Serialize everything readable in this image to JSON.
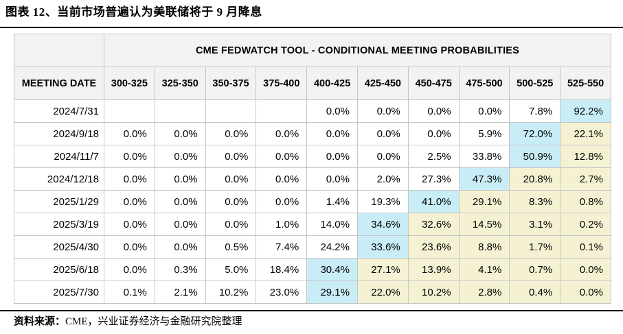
{
  "page": {
    "title": "图表 12、当前市场普遍认为美联储将于 9 月降息",
    "source": {
      "label": "资料来源：",
      "text": "CME，兴业证券经济与金融研究院整理"
    }
  },
  "table": {
    "main_header": "CME FEDWATCH TOOL - CONDITIONAL MEETING PROBABILITIES",
    "meeting_date_header": "MEETING DATE",
    "rate_bins": [
      "300-325",
      "325-350",
      "350-375",
      "375-400",
      "400-425",
      "425-450",
      "450-475",
      "475-500",
      "500-525",
      "525-550"
    ],
    "rows": [
      {
        "date": "2024/7/31",
        "values": [
          "",
          "",
          "",
          "",
          "0.0%",
          "0.0%",
          "0.0%",
          "0.0%",
          "7.8%",
          "92.2%"
        ],
        "highlights": [
          "",
          "",
          "",
          "",
          "",
          "",
          "",
          "",
          "",
          "cyan"
        ]
      },
      {
        "date": "2024/9/18",
        "values": [
          "0.0%",
          "0.0%",
          "0.0%",
          "0.0%",
          "0.0%",
          "0.0%",
          "0.0%",
          "5.9%",
          "72.0%",
          "22.1%"
        ],
        "highlights": [
          "",
          "",
          "",
          "",
          "",
          "",
          "",
          "",
          "cyan",
          "yellow"
        ]
      },
      {
        "date": "2024/11/7",
        "values": [
          "0.0%",
          "0.0%",
          "0.0%",
          "0.0%",
          "0.0%",
          "0.0%",
          "2.5%",
          "33.8%",
          "50.9%",
          "12.8%"
        ],
        "highlights": [
          "",
          "",
          "",
          "",
          "",
          "",
          "",
          "",
          "cyan",
          "yellow"
        ]
      },
      {
        "date": "2024/12/18",
        "values": [
          "0.0%",
          "0.0%",
          "0.0%",
          "0.0%",
          "0.0%",
          "2.0%",
          "27.3%",
          "47.3%",
          "20.8%",
          "2.7%"
        ],
        "highlights": [
          "",
          "",
          "",
          "",
          "",
          "",
          "",
          "cyan",
          "yellow",
          "yellow"
        ]
      },
      {
        "date": "2025/1/29",
        "values": [
          "0.0%",
          "0.0%",
          "0.0%",
          "0.0%",
          "1.4%",
          "19.3%",
          "41.0%",
          "29.1%",
          "8.3%",
          "0.8%"
        ],
        "highlights": [
          "",
          "",
          "",
          "",
          "",
          "",
          "cyan",
          "yellow",
          "yellow",
          "yellow"
        ]
      },
      {
        "date": "2025/3/19",
        "values": [
          "0.0%",
          "0.0%",
          "0.0%",
          "1.0%",
          "14.0%",
          "34.6%",
          "32.6%",
          "14.5%",
          "3.1%",
          "0.2%"
        ],
        "highlights": [
          "",
          "",
          "",
          "",
          "",
          "cyan",
          "yellow",
          "yellow",
          "yellow",
          "yellow"
        ]
      },
      {
        "date": "2025/4/30",
        "values": [
          "0.0%",
          "0.0%",
          "0.5%",
          "7.4%",
          "24.2%",
          "33.6%",
          "23.6%",
          "8.8%",
          "1.7%",
          "0.1%"
        ],
        "highlights": [
          "",
          "",
          "",
          "",
          "",
          "cyan",
          "yellow",
          "yellow",
          "yellow",
          "yellow"
        ]
      },
      {
        "date": "2025/6/18",
        "values": [
          "0.0%",
          "0.3%",
          "5.0%",
          "18.4%",
          "30.4%",
          "27.1%",
          "13.9%",
          "4.1%",
          "0.7%",
          "0.0%"
        ],
        "highlights": [
          "",
          "",
          "",
          "",
          "cyan",
          "yellow",
          "yellow",
          "yellow",
          "yellow",
          "yellow"
        ]
      },
      {
        "date": "2025/7/30",
        "values": [
          "0.1%",
          "2.1%",
          "10.2%",
          "23.0%",
          "29.1%",
          "22.0%",
          "10.2%",
          "2.8%",
          "0.4%",
          "0.0%"
        ],
        "highlights": [
          "",
          "",
          "",
          "",
          "cyan",
          "yellow",
          "yellow",
          "yellow",
          "yellow",
          "yellow"
        ]
      }
    ]
  },
  "colors": {
    "highlight_cyan": "#c9edf6",
    "highlight_yellow": "#f5f2d3",
    "header_bg": "#f2f2f2",
    "grid_border": "#c6c6c6",
    "rule_black": "#000000"
  }
}
